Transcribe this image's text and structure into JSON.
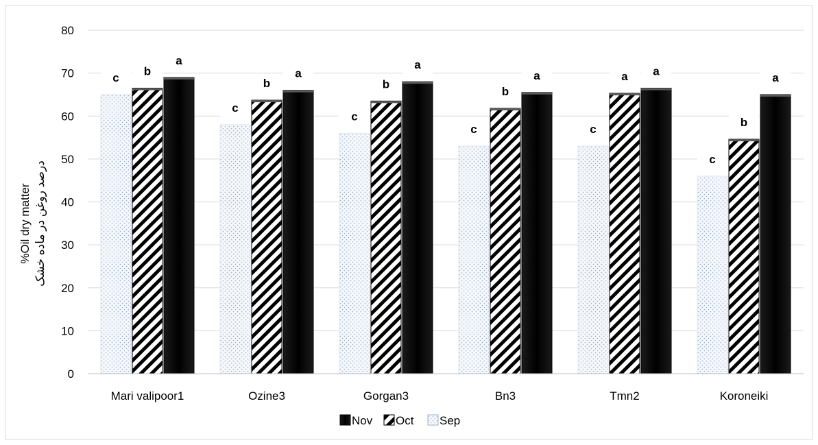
{
  "chart_data": {
    "type": "bar",
    "title": "",
    "ylabel": "%Oil dry matter",
    "ylabel_secondary": "درصد روغن در ماده خشک",
    "xlabel": "",
    "ylim": [
      0,
      80
    ],
    "yticks": [
      0,
      10,
      20,
      30,
      40,
      50,
      60,
      70,
      80
    ],
    "grid": "horizontal",
    "legend_position": "bottom",
    "categories": [
      "Mari valipoor1",
      "Ozine3",
      "Gorgan3",
      "Bn3",
      "Tmn2",
      "Koroneiki"
    ],
    "series": [
      {
        "name": "Sep",
        "pattern": "dots",
        "color": "#e8eef5",
        "values": [
          65,
          58,
          56,
          53,
          53,
          46
        ],
        "letters": [
          "c",
          "c",
          "c",
          "c",
          "c",
          "c"
        ]
      },
      {
        "name": "Oct",
        "pattern": "diagonal-stripes",
        "color": "#000000",
        "values": [
          66.5,
          63.7,
          63.5,
          61.8,
          65.3,
          54.6
        ],
        "letters": [
          "b",
          "b",
          "b",
          "b",
          "a",
          "b"
        ]
      },
      {
        "name": "Nov",
        "pattern": "solid",
        "color": "#000000",
        "values": [
          69,
          66,
          68,
          65.5,
          66.5,
          65
        ],
        "letters": [
          "a",
          "a",
          "a",
          "a",
          "a",
          "a"
        ]
      }
    ],
    "legend_order": [
      "Nov",
      "Oct",
      "Sep"
    ]
  }
}
